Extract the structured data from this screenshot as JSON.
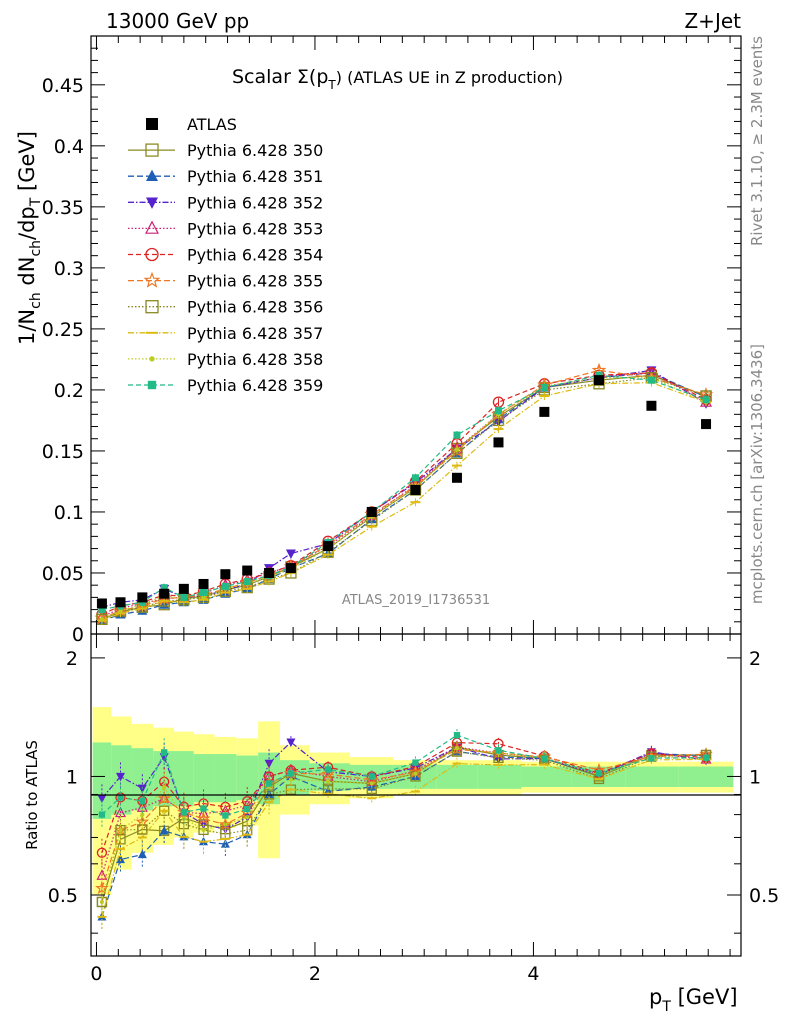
{
  "header": {
    "left": "13000 GeV pp",
    "right": "Z+Jet"
  },
  "side_labels": {
    "rivet": "Rivet 3.1.10, ≥ 2.3M events",
    "mcplots": "mcplots.cern.ch [arXiv:1306.3436]"
  },
  "watermark": "ATLAS_2019_I1736531",
  "chart_data": {
    "type": "scatter",
    "title_prefix": "Scalar Σ(p",
    "title_sub": "T",
    "title_suffix": ") (ATLAS UE in Z production)",
    "xlabel": "p_T [GeV]",
    "ylabel_main": "1/N_ch dN_ch/dp_T [GeV]",
    "ylabel_ratio": "Ratio to ATLAS",
    "xlim": [
      -0.05,
      5.9
    ],
    "ylim_main": [
      0,
      0.49
    ],
    "ylim_ratio": [
      0.35,
      2.3
    ],
    "x_ticks": [
      "0",
      "2",
      "4"
    ],
    "y_ticks_main": [
      "0",
      "0.05",
      "0.1",
      "0.15",
      "0.2",
      "0.25",
      "0.3",
      "0.35",
      "0.4",
      "0.45"
    ],
    "y_ticks_ratio": [
      "0.5",
      "1",
      "2"
    ],
    "x": [
      0.05,
      0.22,
      0.42,
      0.62,
      0.8,
      0.98,
      1.18,
      1.38,
      1.58,
      1.78,
      2.12,
      2.52,
      2.92,
      3.3,
      3.68,
      4.1,
      4.6,
      5.08,
      5.58
    ],
    "atlas": [
      0.025,
      0.026,
      0.03,
      0.033,
      0.037,
      0.041,
      0.049,
      0.052,
      0.05,
      0.054,
      0.072,
      0.1,
      0.118,
      0.128,
      0.157,
      0.182,
      0.208,
      0.187,
      0.172
    ],
    "band_inner": [
      0.22,
      0.2,
      0.18,
      0.16,
      0.16,
      0.14,
      0.14,
      0.13,
      0.15,
      0.1,
      0.08,
      0.07,
      0.07,
      0.07,
      0.07,
      0.06,
      0.06,
      0.06,
      0.06
    ],
    "band_outer": [
      0.5,
      0.42,
      0.36,
      0.33,
      0.3,
      0.28,
      0.26,
      0.25,
      0.38,
      0.2,
      0.15,
      0.12,
      0.1,
      0.1,
      0.1,
      0.09,
      0.09,
      0.09,
      0.09
    ],
    "series": [
      {
        "name": "ATLAS",
        "color": "#000000",
        "marker": "square-filled",
        "dash": "none"
      },
      {
        "name": "Pythia 6.428 350",
        "color": "#8b8b22",
        "marker": "square-open",
        "dash": "solid",
        "values": [
          0.012,
          0.018,
          0.022,
          0.024,
          0.029,
          0.031,
          0.036,
          0.04,
          0.047,
          0.055,
          0.07,
          0.096,
          0.12,
          0.152,
          0.178,
          0.202,
          0.208,
          0.212,
          0.195
        ]
      },
      {
        "name": "Pythia 6.428 351",
        "color": "#1f5fb4",
        "marker": "triangle-up",
        "dash": "6,3",
        "values": [
          0.011,
          0.016,
          0.019,
          0.024,
          0.026,
          0.028,
          0.033,
          0.037,
          0.045,
          0.054,
          0.066,
          0.094,
          0.118,
          0.148,
          0.176,
          0.202,
          0.21,
          0.214,
          0.194
        ]
      },
      {
        "name": "Pythia 6.428 352",
        "color": "#5522cc",
        "marker": "triangle-down",
        "dash": "6,2,1.5,2",
        "values": [
          0.022,
          0.026,
          0.028,
          0.037,
          0.03,
          0.031,
          0.036,
          0.041,
          0.054,
          0.066,
          0.074,
          0.1,
          0.124,
          0.152,
          0.174,
          0.202,
          0.21,
          0.216,
          0.189
        ]
      },
      {
        "name": "Pythia 6.428 353",
        "color": "#cc2277",
        "marker": "triangle-open",
        "dash": "1.5,2",
        "values": [
          0.014,
          0.021,
          0.025,
          0.029,
          0.03,
          0.033,
          0.04,
          0.044,
          0.05,
          0.056,
          0.072,
          0.097,
          0.122,
          0.152,
          0.18,
          0.203,
          0.21,
          0.214,
          0.19
        ]
      },
      {
        "name": "Pythia 6.428 354",
        "color": "#dd2222",
        "marker": "circle-open",
        "dash": "5,3",
        "values": [
          0.016,
          0.023,
          0.026,
          0.032,
          0.031,
          0.035,
          0.041,
          0.045,
          0.05,
          0.056,
          0.076,
          0.1,
          0.125,
          0.156,
          0.19,
          0.205,
          0.212,
          0.214,
          0.192
        ]
      },
      {
        "name": "Pythia 6.428 355",
        "color": "#ee7722",
        "marker": "star-open",
        "dash": "6,3",
        "values": [
          0.013,
          0.019,
          0.023,
          0.029,
          0.03,
          0.032,
          0.037,
          0.042,
          0.048,
          0.055,
          0.073,
          0.098,
          0.121,
          0.15,
          0.18,
          0.204,
          0.216,
          0.21,
          0.196
        ]
      },
      {
        "name": "Pythia 6.428 356",
        "color": "#888822",
        "marker": "square-open",
        "dash": "1.5,2",
        "values": [
          0.012,
          0.019,
          0.022,
          0.027,
          0.028,
          0.03,
          0.035,
          0.038,
          0.045,
          0.05,
          0.067,
          0.093,
          0.118,
          0.148,
          0.175,
          0.2,
          0.205,
          0.21,
          0.195
        ]
      },
      {
        "name": "Pythia 6.428 357",
        "color": "#ddbb11",
        "marker": "dash",
        "dash": "6,2,1.5,2",
        "values": [
          0.011,
          0.017,
          0.021,
          0.027,
          0.026,
          0.028,
          0.034,
          0.037,
          0.043,
          0.05,
          0.065,
          0.088,
          0.108,
          0.138,
          0.168,
          0.195,
          0.205,
          0.206,
          0.19
        ]
      },
      {
        "name": "Pythia 6.428 358",
        "color": "#bbcc22",
        "marker": "dot",
        "dash": "1.5,2",
        "values": [
          0.012,
          0.019,
          0.024,
          0.031,
          0.029,
          0.03,
          0.037,
          0.041,
          0.047,
          0.053,
          0.07,
          0.096,
          0.12,
          0.151,
          0.18,
          0.203,
          0.21,
          0.21,
          0.19
        ]
      },
      {
        "name": "Pythia 6.428 359",
        "color": "#22bb88",
        "marker": "square-small",
        "dash": "5,3",
        "values": [
          0.02,
          0.023,
          0.026,
          0.038,
          0.03,
          0.034,
          0.039,
          0.043,
          0.048,
          0.055,
          0.075,
          0.1,
          0.128,
          0.163,
          0.183,
          0.202,
          0.212,
          0.208,
          0.192
        ]
      }
    ]
  }
}
